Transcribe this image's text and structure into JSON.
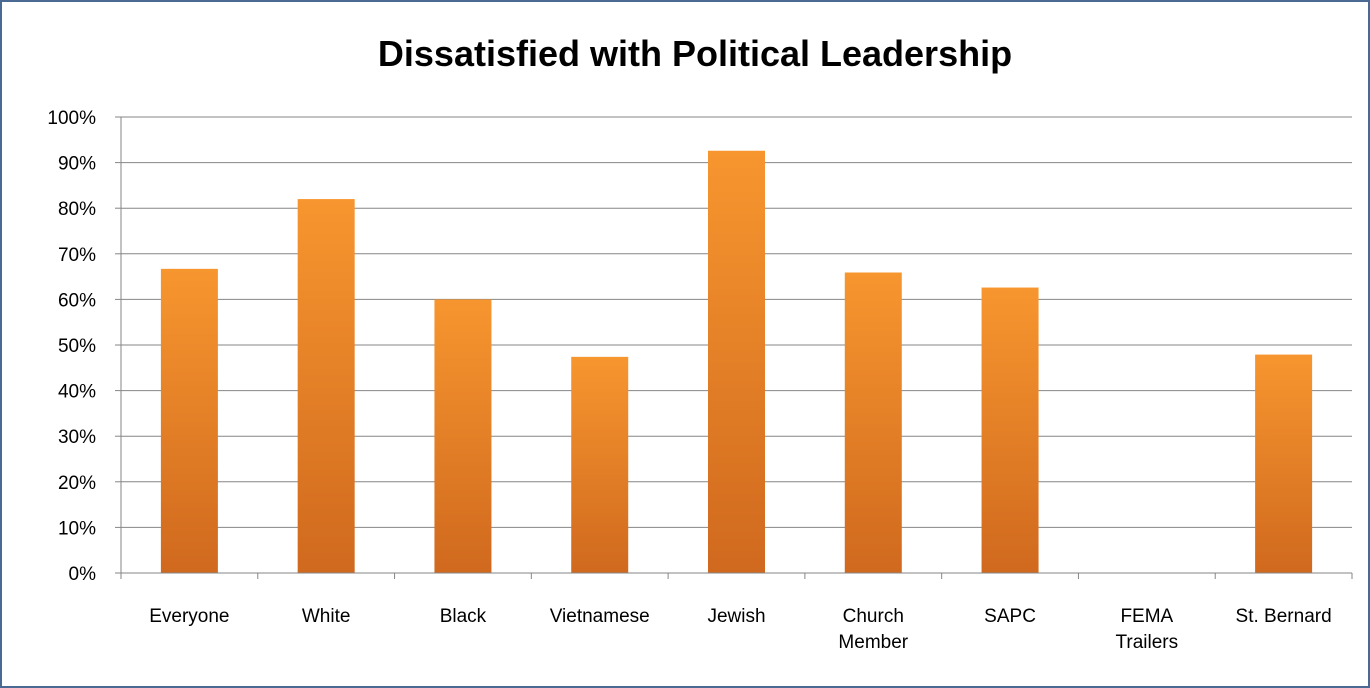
{
  "chart_data": {
    "type": "bar",
    "title": "Dissatisfied with Political Leadership",
    "xlabel": "",
    "ylabel": "",
    "categories": [
      "Everyone",
      "White",
      "Black",
      "Vietnamese",
      "Jewish",
      "Church Member",
      "SAPC",
      "FEMA Trailers",
      "St. Bernard"
    ],
    "category_lines": [
      [
        "Everyone"
      ],
      [
        "White"
      ],
      [
        "Black"
      ],
      [
        "Vietnamese"
      ],
      [
        "Jewish"
      ],
      [
        "Church",
        "Member"
      ],
      [
        "SAPC"
      ],
      [
        "FEMA",
        "Trailers"
      ],
      [
        "St. Bernard"
      ]
    ],
    "values": [
      66.7,
      82.0,
      60.0,
      47.4,
      92.6,
      65.9,
      62.6,
      null,
      47.9
    ],
    "ylim": [
      0,
      100
    ],
    "yticks": [
      0,
      10,
      20,
      30,
      40,
      50,
      60,
      70,
      80,
      90,
      100
    ],
    "ytick_labels": [
      "0%",
      "10%",
      "20%",
      "30%",
      "40%",
      "50%",
      "60%",
      "70%",
      "80%",
      "90%",
      "100%"
    ],
    "grid": true,
    "legend": "none",
    "colors": {
      "bar_top": "#f7962f",
      "bar_bottom": "#d0691e",
      "grid": "#868686",
      "axis": "#868686"
    }
  }
}
